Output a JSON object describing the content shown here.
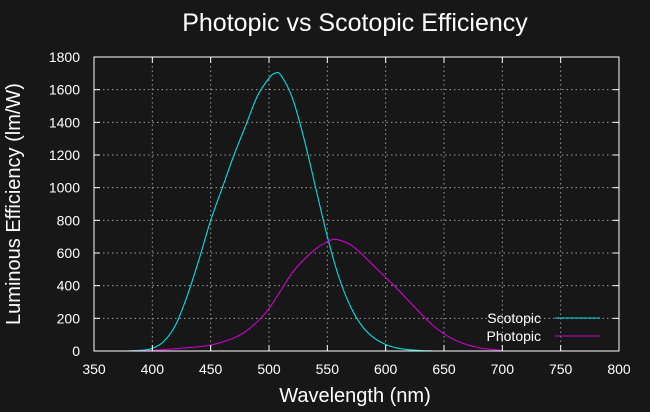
{
  "chart_data": {
    "type": "line",
    "title": "Photopic vs Scotopic Efficiency",
    "xlabel": "Wavelength (nm)",
    "ylabel": "Luminous Efficiency (lm/W)",
    "xlim": [
      350,
      800
    ],
    "ylim": [
      0,
      1800
    ],
    "xticks": [
      350,
      400,
      450,
      500,
      550,
      600,
      650,
      700,
      750,
      800
    ],
    "yticks": [
      0,
      200,
      400,
      600,
      800,
      1000,
      1200,
      1400,
      1600,
      1800
    ],
    "grid": true,
    "legend_position": "bottom-right",
    "background": "#171717",
    "series": [
      {
        "name": "Scotopic",
        "color": "#00e0e0",
        "x": [
          380,
          390,
          400,
          410,
          420,
          430,
          440,
          450,
          460,
          470,
          480,
          490,
          500,
          505,
          510,
          520,
          530,
          540,
          550,
          560,
          570,
          580,
          590,
          600,
          610,
          620,
          630,
          640
        ],
        "y": [
          1,
          4,
          16,
          60,
          160,
          340,
          560,
          800,
          1000,
          1200,
          1380,
          1560,
          1670,
          1700,
          1690,
          1550,
          1300,
          1000,
          700,
          450,
          270,
          150,
          80,
          40,
          18,
          8,
          3,
          1
        ]
      },
      {
        "name": "Photopic",
        "color": "#d000d0",
        "x": [
          380,
          390,
          400,
          410,
          420,
          430,
          440,
          450,
          460,
          470,
          480,
          490,
          500,
          510,
          520,
          530,
          540,
          550,
          555,
          560,
          570,
          580,
          590,
          600,
          610,
          620,
          630,
          640,
          650,
          660,
          670,
          680,
          690,
          700
        ],
        "y": [
          0,
          1,
          3,
          8,
          14,
          20,
          26,
          36,
          55,
          80,
          120,
          180,
          260,
          370,
          480,
          560,
          625,
          670,
          683,
          680,
          650,
          590,
          520,
          450,
          380,
          305,
          230,
          160,
          105,
          65,
          38,
          20,
          10,
          4
        ]
      }
    ]
  }
}
